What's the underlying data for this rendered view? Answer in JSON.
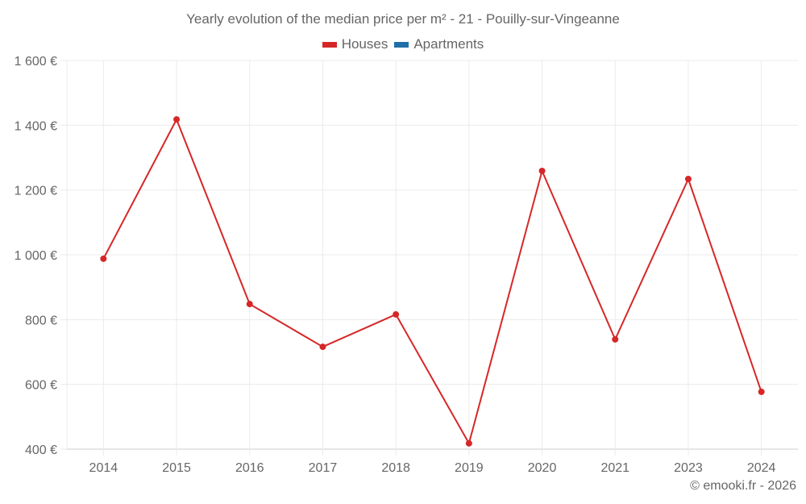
{
  "chart": {
    "title": "Yearly evolution of the median price per m² - 21 - Pouilly-sur-Vingeanne",
    "legend": [
      {
        "label": "Houses",
        "color": "#d62728"
      },
      {
        "label": "Apartments",
        "color": "#1f6fa8"
      }
    ],
    "credit": "© emooki.fr - 2026",
    "y_ticks": [
      "1 600 €",
      "1 400 €",
      "1 200 €",
      "1 000 €",
      "800 €",
      "600 €",
      "400 €"
    ],
    "x_ticks": [
      "2014",
      "2015",
      "2016",
      "2017",
      "2018",
      "2019",
      "2020",
      "2021",
      "2023",
      "2024"
    ]
  },
  "chart_data": {
    "type": "line",
    "title": "Yearly evolution of the median price per m² - 21 - Pouilly-sur-Vingeanne",
    "xlabel": "",
    "ylabel": "",
    "categories": [
      "2014",
      "2015",
      "2016",
      "2017",
      "2018",
      "2019",
      "2020",
      "2021",
      "2023",
      "2024"
    ],
    "series": [
      {
        "name": "Houses",
        "color": "#d62728",
        "values": [
          988,
          1418,
          848,
          716,
          816,
          418,
          1259,
          739,
          1234,
          577
        ]
      },
      {
        "name": "Apartments",
        "color": "#1f6fa8",
        "values": []
      }
    ],
    "ylim": [
      400,
      1600
    ],
    "y_tick_values": [
      400,
      600,
      800,
      1000,
      1200,
      1400,
      1600
    ],
    "grid": true,
    "legend_position": "top"
  }
}
